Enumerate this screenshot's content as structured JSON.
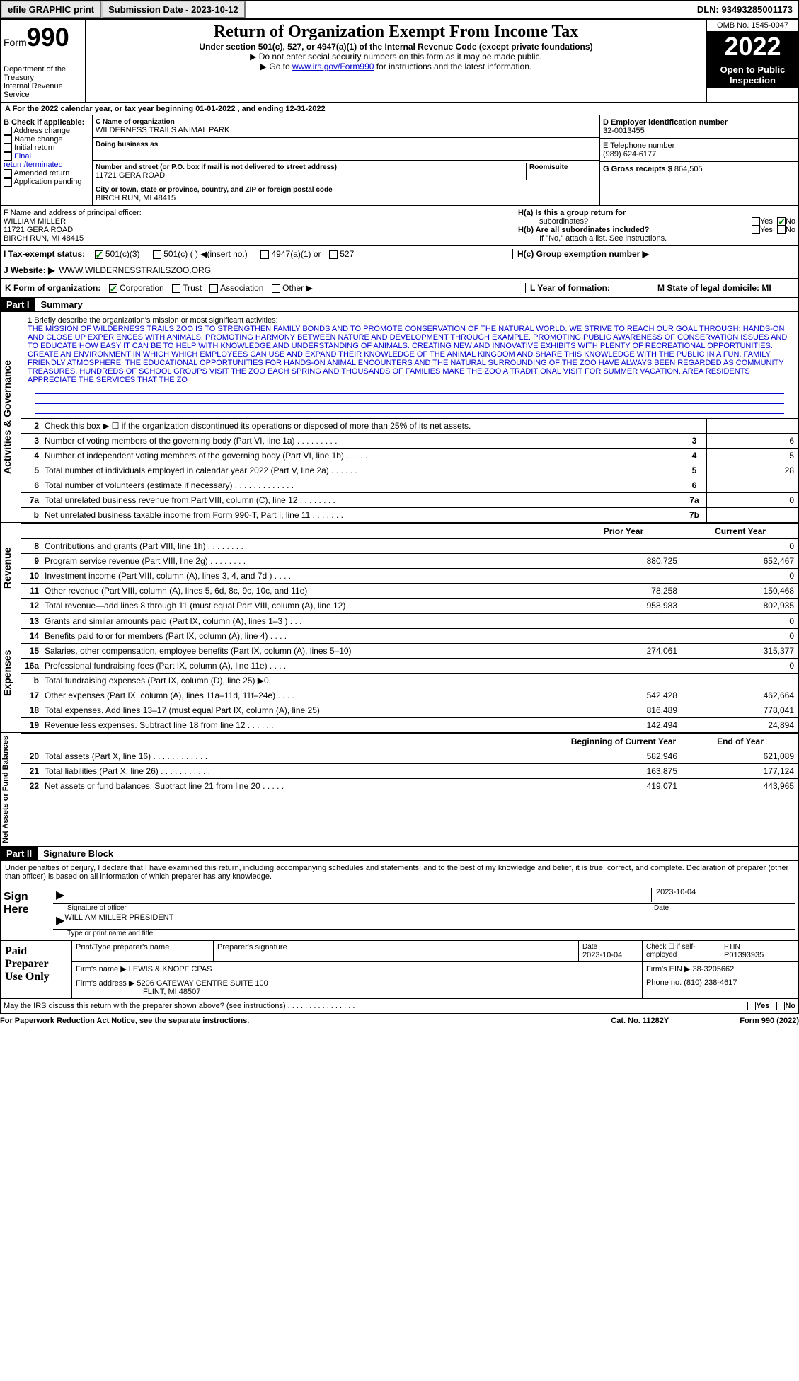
{
  "topbar": {
    "efile": "efile GRAPHIC print",
    "submission_label": "Submission Date - 2023-10-12",
    "dln": "DLN: 93493285001173"
  },
  "header": {
    "form_prefix": "Form",
    "form_num": "990",
    "dept": "Department of the Treasury",
    "irs": "Internal Revenue Service",
    "title": "Return of Organization Exempt From Income Tax",
    "subtitle": "Under section 501(c), 527, or 4947(a)(1) of the Internal Revenue Code (except private foundations)",
    "instr1": "▶ Do not enter social security numbers on this form as it may be made public.",
    "instr2_pre": "▶ Go to ",
    "instr2_link": "www.irs.gov/Form990",
    "instr2_post": " for instructions and the latest information.",
    "omb": "OMB No. 1545-0047",
    "year": "2022",
    "open1": "Open to Public",
    "open2": "Inspection"
  },
  "section_a": {
    "a_text": "A For the 2022 calendar year, or tax year beginning 01-01-2022   , and ending 12-31-2022",
    "b_label": "B Check if applicable:",
    "b_items": [
      "Address change",
      "Name change",
      "Initial return",
      "Final return/terminated",
      "Amended return",
      "Application pending"
    ],
    "c_name_label": "C Name of organization",
    "c_name": "WILDERNESS TRAILS ANIMAL PARK",
    "c_dba_label": "Doing business as",
    "c_street_label": "Number and street (or P.O. box if mail is not delivered to street address)",
    "c_street": "11721 GERA ROAD",
    "c_room_label": "Room/suite",
    "c_city_label": "City or town, state or province, country, and ZIP or foreign postal code",
    "c_city": "BIRCH RUN, MI  48415",
    "d_label": "D Employer identification number",
    "d_value": "32-0013455",
    "e_label": "E Telephone number",
    "e_value": "(989) 624-6177",
    "g_label": "G Gross receipts $",
    "g_value": "864,505",
    "f_label": "F  Name and address of principal officer:",
    "f_name": "WILLIAM MILLER",
    "f_addr1": "11721 GERA ROAD",
    "f_addr2": "BIRCH RUN, MI  48415",
    "ha_label": "H(a)  Is this a group return for",
    "ha_sub": "subordinates?",
    "hb_label": "H(b)  Are all subordinates included?",
    "hb_note": "If \"No,\" attach a list. See instructions.",
    "hc_label": "H(c)  Group exemption number ▶",
    "yes": "Yes",
    "no": "No",
    "i_label": "I   Tax-exempt status:",
    "i_501c3": "501(c)(3)",
    "i_501c": "501(c) (  ) ◀(insert no.)",
    "i_4947": "4947(a)(1) or",
    "i_527": "527",
    "j_label": "J  Website: ▶",
    "j_value": "WWW.WILDERNESSTRAILSZOO.ORG",
    "k_label": "K Form of organization:",
    "k_corp": "Corporation",
    "k_trust": "Trust",
    "k_assoc": "Association",
    "k_other": "Other ▶",
    "l_label": "L Year of formation:",
    "m_label": "M State of legal domicile: MI"
  },
  "part1": {
    "part_label": "Part I",
    "title": "Summary",
    "side_activities": "Activities & Governance",
    "side_revenue": "Revenue",
    "side_expenses": "Expenses",
    "side_netassets": "Net Assets or Fund Balances",
    "line1_label": "1",
    "line1_text": "Briefly describe the organization's mission or most significant activities:",
    "mission": "THE MISSION OF WILDERNESS TRAILS ZOO IS TO STRENGTHEN FAMILY BONDS AND TO PROMOTE CONSERVATION OF THE NATURAL WORLD. WE STRIVE TO REACH OUR GOAL THROUGH: HANDS-ON AND CLOSE UP EXPERIENCES WITH ANIMALS, PROMOTING HARMONY BETWEEN NATURE AND DEVELOPMENT THROUGH EXAMPLE. PROMOTING PUBLIC AWARENESS OF CONSERVATION ISSUES AND TO EDUCATE HOW EASY IT CAN BE TO HELP WITH KNOWLEDGE AND UNDERSTANDING OF ANIMALS. CREATING NEW AND INNOVATIVE EXHIBITS WITH PLENTY OF RECREATIONAL OPPORTUNITIES. CREATE AN ENVIRONMENT IN WHICH WHICH EMPLOYEES CAN USE AND EXPAND THEIR KNOWLEDGE OF THE ANIMAL KINGDOM AND SHARE THIS KNOWLEDGE WITH THE PUBLIC IN A FUN, FAMILY FRIENDLY ATMOSPHERE. THE EDUCATIONAL OPPORTUNITIES FOR HANDS-ON ANIMAL ENCOUNTERS AND THE NATURAL SURROUNDING OF THE ZOO HAVE ALWAYS BEEN REGARDED AS COMMUNITY TREASURES. HUNDREDS OF SCHOOL GROUPS VISIT THE ZOO EACH SPRING AND THOUSANDS OF FAMILIES MAKE THE ZOO A TRADITIONAL VISIT FOR SUMMER VACATION. AREA RESIDENTS APPRECIATE THE SERVICES THAT THE ZO",
    "lines_gov": [
      {
        "num": "2",
        "desc": "Check this box ▶ ☐ if the organization discontinued its operations or disposed of more than 25% of its net assets.",
        "box": "",
        "val": ""
      },
      {
        "num": "3",
        "desc": "Number of voting members of the governing body (Part VI, line 1a)  .   .   .   .   .   .   .   .   .",
        "box": "3",
        "val": "6"
      },
      {
        "num": "4",
        "desc": "Number of independent voting members of the governing body (Part VI, line 1b)   .   .   .   .   .",
        "box": "4",
        "val": "5"
      },
      {
        "num": "5",
        "desc": "Total number of individuals employed in calendar year 2022 (Part V, line 2a)  .   .   .   .   .   .",
        "box": "5",
        "val": "28"
      },
      {
        "num": "6",
        "desc": "Total number of volunteers (estimate if necessary)  .   .   .   .   .   .   .   .   .   .   .   .   .",
        "box": "6",
        "val": ""
      },
      {
        "num": "7a",
        "desc": "Total unrelated business revenue from Part VIII, column (C), line 12  .   .   .   .   .   .   .   .",
        "box": "7a",
        "val": "0"
      },
      {
        "num": "b",
        "desc": "Net unrelated business taxable income from Form 990-T, Part I, line 11   .   .   .   .   .   .   .",
        "box": "7b",
        "val": ""
      }
    ],
    "prior_year": "Prior Year",
    "current_year": "Current Year",
    "lines_rev": [
      {
        "num": "8",
        "desc": "Contributions and grants (Part VIII, line 1h)  .   .   .   .   .   .   .   .",
        "prior": "",
        "curr": "0"
      },
      {
        "num": "9",
        "desc": "Program service revenue (Part VIII, line 2g)   .   .   .   .   .   .   .   .",
        "prior": "880,725",
        "curr": "652,467"
      },
      {
        "num": "10",
        "desc": "Investment income (Part VIII, column (A), lines 3, 4, and 7d )  .   .   .   .",
        "prior": "",
        "curr": "0"
      },
      {
        "num": "11",
        "desc": "Other revenue (Part VIII, column (A), lines 5, 6d, 8c, 9c, 10c, and 11e)",
        "prior": "78,258",
        "curr": "150,468"
      },
      {
        "num": "12",
        "desc": "Total revenue—add lines 8 through 11 (must equal Part VIII, column (A), line 12)",
        "prior": "958,983",
        "curr": "802,935"
      }
    ],
    "lines_exp": [
      {
        "num": "13",
        "desc": "Grants and similar amounts paid (Part IX, column (A), lines 1–3 )  .   .   .",
        "prior": "",
        "curr": "0"
      },
      {
        "num": "14",
        "desc": "Benefits paid to or for members (Part IX, column (A), line 4)  .   .   .   .",
        "prior": "",
        "curr": "0"
      },
      {
        "num": "15",
        "desc": "Salaries, other compensation, employee benefits (Part IX, column (A), lines 5–10)",
        "prior": "274,061",
        "curr": "315,377"
      },
      {
        "num": "16a",
        "desc": "Professional fundraising fees (Part IX, column (A), line 11e)  .   .   .   .",
        "prior": "",
        "curr": "0"
      },
      {
        "num": "b",
        "desc": "Total fundraising expenses (Part IX, column (D), line 25) ▶0",
        "prior": "shaded",
        "curr": "shaded"
      },
      {
        "num": "17",
        "desc": "Other expenses (Part IX, column (A), lines 11a–11d, 11f–24e)  .   .   .   .",
        "prior": "542,428",
        "curr": "462,664"
      },
      {
        "num": "18",
        "desc": "Total expenses. Add lines 13–17 (must equal Part IX, column (A), line 25)",
        "prior": "816,489",
        "curr": "778,041"
      },
      {
        "num": "19",
        "desc": "Revenue less expenses. Subtract line 18 from line 12   .   .   .   .   .   .",
        "prior": "142,494",
        "curr": "24,894"
      }
    ],
    "begin_year": "Beginning of Current Year",
    "end_year": "End of Year",
    "lines_net": [
      {
        "num": "20",
        "desc": "Total assets (Part X, line 16)  .   .   .   .   .   .   .   .   .   .   .   .",
        "prior": "582,946",
        "curr": "621,089"
      },
      {
        "num": "21",
        "desc": "Total liabilities (Part X, line 26)   .   .   .   .   .   .   .   .   .   .   .",
        "prior": "163,875",
        "curr": "177,124"
      },
      {
        "num": "22",
        "desc": "Net assets or fund balances. Subtract line 21 from line 20  .   .   .   .   .",
        "prior": "419,071",
        "curr": "443,965"
      }
    ]
  },
  "part2": {
    "part_label": "Part II",
    "title": "Signature Block",
    "declare": "Under penalties of perjury, I declare that I have examined this return, including accompanying schedules and statements, and to the best of my knowledge and belief, it is true, correct, and complete. Declaration of preparer (other than officer) is based on all information of which preparer has any knowledge.",
    "sign_here": "Sign Here",
    "sig_officer": "Signature of officer",
    "sig_date": "2023-10-04",
    "date_label": "Date",
    "officer_name": "WILLIAM MILLER PRESIDENT",
    "type_name": "Type or print name and title",
    "paid_label": "Paid Preparer Use Only",
    "prep_name_label": "Print/Type preparer's name",
    "prep_sig_label": "Preparer's signature",
    "prep_date_label": "Date",
    "prep_date": "2023-10-04",
    "check_self": "Check ☐ if self-employed",
    "ptin_label": "PTIN",
    "ptin": "P01393935",
    "firm_name_label": "Firm's name      ▶",
    "firm_name": "LEWIS & KNOPF CPAS",
    "firm_ein_label": "Firm's EIN ▶",
    "firm_ein": "38-3205662",
    "firm_addr_label": "Firm's address ▶",
    "firm_addr1": "5206 GATEWAY CENTRE SUITE 100",
    "firm_addr2": "FLINT, MI  48507",
    "phone_label": "Phone no.",
    "phone": "(810) 238-4617",
    "discuss": "May the IRS discuss this return with the preparer shown above? (see instructions)   .   .   .   .   .   .   .   .   .   .   .   .   .   .   .   .",
    "paperwork": "For Paperwork Reduction Act Notice, see the separate instructions.",
    "cat": "Cat. No. 11282Y",
    "form_footer": "Form 990 (2022)"
  }
}
